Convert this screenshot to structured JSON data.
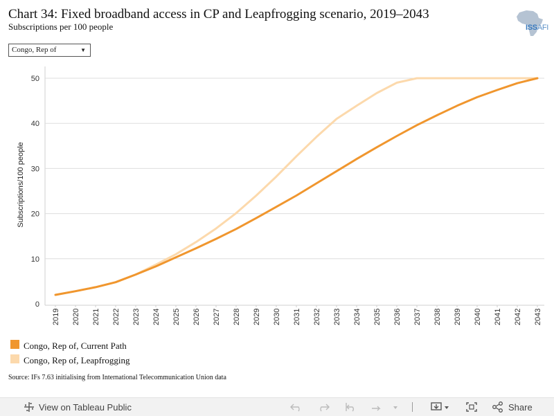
{
  "title": "Chart 34: Fixed broadband access in CP and Leapfrogging scenario, 2019–2043",
  "subtitle": "Subscriptions per 100 people",
  "logo": {
    "text": "ISS",
    "sub": "AFI"
  },
  "country_select": {
    "value": "Congo, Rep of"
  },
  "legend": [
    {
      "label": "Congo, Rep of, Current Path",
      "color": "#f0962e"
    },
    {
      "label": "Congo, Rep of, Leapfrogging",
      "color": "#fcd9ac"
    }
  ],
  "source": "Source: IFs 7.63 initialising from International Telecommunication Union data",
  "toolbar": {
    "view_label": "View on Tableau Public",
    "share_label": "Share"
  },
  "chart_data": {
    "type": "line",
    "title": "Chart 34: Fixed broadband access in CP and Leapfrogging scenario, 2019–2043",
    "subtitle": "Subscriptions per 100 people",
    "xlabel": "",
    "ylabel": "Subscriptions/100 people",
    "ylim": [
      0,
      50
    ],
    "yticks": [
      0,
      10,
      20,
      30,
      40,
      50
    ],
    "x": [
      2019,
      2020,
      2021,
      2022,
      2023,
      2024,
      2025,
      2026,
      2027,
      2028,
      2029,
      2030,
      2031,
      2032,
      2033,
      2034,
      2035,
      2036,
      2037,
      2038,
      2039,
      2040,
      2041,
      2042,
      2043
    ],
    "grid": true,
    "legend_position": "bottom-left",
    "series": [
      {
        "name": "Congo, Rep of, Current Path",
        "color": "#f0962e",
        "values": [
          2.0,
          2.8,
          3.7,
          4.8,
          6.5,
          8.3,
          10.3,
          12.3,
          14.4,
          16.6,
          19.0,
          21.5,
          24.0,
          26.7,
          29.4,
          32.1,
          34.7,
          37.2,
          39.6,
          41.8,
          43.9,
          45.8,
          47.4,
          48.9,
          50.0
        ]
      },
      {
        "name": "Congo, Rep of, Leapfrogging",
        "color": "#fcd9ac",
        "values": [
          2.0,
          2.8,
          3.7,
          4.8,
          6.5,
          8.7,
          11.0,
          13.7,
          16.7,
          20.1,
          24.0,
          28.2,
          32.7,
          37.0,
          41.0,
          43.9,
          46.7,
          49.0,
          50.0,
          50.0,
          50.0,
          50.0,
          50.0,
          50.0,
          50.0
        ]
      }
    ]
  }
}
